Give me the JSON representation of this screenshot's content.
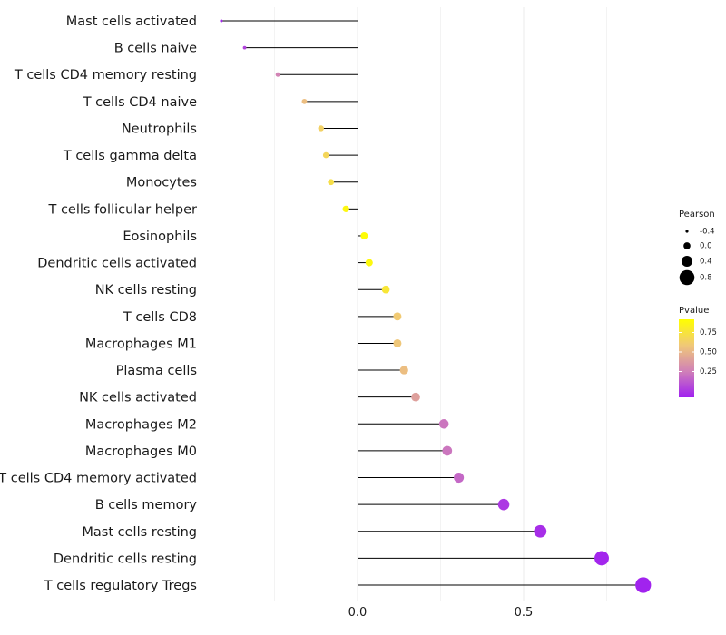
{
  "chart_data": {
    "type": "lollipop",
    "categories": [
      "Mast cells activated",
      "B cells naive",
      "T cells CD4 memory resting",
      "T cells CD4 naive",
      "Neutrophils",
      "T cells gamma delta",
      "Monocytes",
      "T cells follicular helper",
      "Eosinophils",
      "Dendritic cells activated",
      "NK cells resting",
      "T cells CD8",
      "Macrophages M1",
      "Plasma cells",
      "NK cells activated",
      "Macrophages M2",
      "Macrophages M0",
      "T cells CD4 memory activated",
      "B cells memory",
      "Mast cells resting",
      "Dendritic cells resting",
      "T cells regulatory  Tregs"
    ],
    "pearson": [
      -0.41,
      -0.34,
      -0.24,
      -0.16,
      -0.11,
      -0.095,
      -0.08,
      -0.035,
      0.02,
      0.035,
      0.085,
      0.12,
      0.12,
      0.14,
      0.175,
      0.26,
      0.27,
      0.305,
      0.44,
      0.55,
      0.735,
      0.86
    ],
    "pvalue": [
      0.02,
      0.12,
      0.35,
      0.62,
      0.72,
      0.75,
      0.8,
      0.95,
      0.98,
      0.96,
      0.85,
      0.68,
      0.66,
      0.62,
      0.48,
      0.3,
      0.3,
      0.25,
      0.08,
      0.05,
      0.02,
      0.01
    ],
    "xlim": [
      -0.48,
      0.92
    ],
    "x_ticks": [
      {
        "value": 0.0,
        "label": "0.0"
      },
      {
        "value": 0.5,
        "label": "0.5"
      }
    ],
    "x_minor_gridlines": [
      -0.25,
      0.25,
      0.75
    ],
    "xlabel": "",
    "ylabel": "",
    "legend": {
      "size": {
        "title": "Pearson",
        "entries": [
          {
            "value": -0.4,
            "label": "-0.4"
          },
          {
            "value": 0.0,
            "label": "0.0"
          },
          {
            "value": 0.4,
            "label": "0.4"
          },
          {
            "value": 0.8,
            "label": "0.8"
          }
        ]
      },
      "color": {
        "title": "Pvalue",
        "range": [
          0.0,
          1.0
        ],
        "ticks": [
          {
            "value": 0.75,
            "label": "0.75"
          },
          {
            "value": 0.5,
            "label": "0.50"
          },
          {
            "value": 0.25,
            "label": "0.25"
          }
        ],
        "gradient_colors": [
          "#A020F0",
          "#D080B8",
          "#F0C878",
          "#FFFF00"
        ]
      },
      "placement": "right"
    }
  }
}
